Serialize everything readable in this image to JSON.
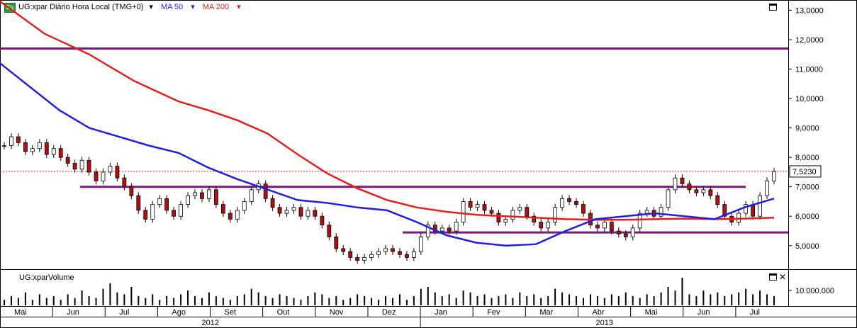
{
  "header": {
    "badge": "Eq",
    "symbol_label": "UG:xpar Diário Hora Local (TMG+0)",
    "ma50_label": "MA 50",
    "ma200_label": "MA 200",
    "caret": "▾"
  },
  "colors": {
    "ma50": "#1f1fe0",
    "ma200": "#e01f1f",
    "resistance": "#7a1a7a",
    "candle_up": "#ffffff",
    "candle_down": "#b01010",
    "price_line": "#e01f1f"
  },
  "volume_panel": {
    "title": "UG:xparVolume",
    "axis_label": "10.000.000"
  },
  "chart_data": {
    "type": "candlestick",
    "price_axis": {
      "ticks": [
        "13,0000",
        "12,0000",
        "11,0000",
        "10,0000",
        "9,0000",
        "8,0000",
        "7,0000",
        "6,0000",
        "5,0000"
      ],
      "ylim": [
        4.2,
        13.3
      ]
    },
    "current_price_label": "7,5230",
    "current_price": 7.523,
    "month_ticks": [
      "Mai",
      "Jun",
      "Jul",
      "Ago",
      "Set",
      "Out",
      "Nov",
      "Dez",
      "Jan",
      "Fev",
      "Mar",
      "Abr",
      "Mai",
      "Jun",
      "Jul"
    ],
    "year_labels": [
      "2012",
      "2013"
    ],
    "horizontal_levels": [
      11.7,
      7.0,
      5.45
    ],
    "ma50": [
      [
        0,
        11.2
      ],
      [
        10,
        10.4
      ],
      [
        20,
        9.6
      ],
      [
        30,
        9.0
      ],
      [
        40,
        8.7
      ],
      [
        50,
        8.4
      ],
      [
        60,
        8.15
      ],
      [
        70,
        7.65
      ],
      [
        80,
        7.25
      ],
      [
        90,
        6.9
      ],
      [
        100,
        6.55
      ],
      [
        110,
        6.45
      ],
      [
        120,
        6.3
      ],
      [
        130,
        6.2
      ],
      [
        140,
        5.8
      ],
      [
        150,
        5.35
      ],
      [
        160,
        5.1
      ],
      [
        170,
        5.0
      ],
      [
        180,
        5.05
      ],
      [
        190,
        5.5
      ],
      [
        200,
        5.9
      ],
      [
        210,
        6.0
      ],
      [
        220,
        6.1
      ],
      [
        230,
        6.0
      ],
      [
        240,
        5.9
      ],
      [
        250,
        6.3
      ],
      [
        260,
        6.6
      ]
    ],
    "ma200": [
      [
        0,
        13.3
      ],
      [
        15,
        12.2
      ],
      [
        30,
        11.5
      ],
      [
        45,
        10.6
      ],
      [
        60,
        9.9
      ],
      [
        70,
        9.6
      ],
      [
        80,
        9.25
      ],
      [
        90,
        8.8
      ],
      [
        100,
        8.1
      ],
      [
        110,
        7.45
      ],
      [
        120,
        6.95
      ],
      [
        130,
        6.55
      ],
      [
        140,
        6.3
      ],
      [
        150,
        6.15
      ],
      [
        160,
        6.05
      ],
      [
        170,
        6.0
      ],
      [
        180,
        5.95
      ],
      [
        190,
        5.9
      ],
      [
        200,
        5.88
      ],
      [
        210,
        5.88
      ],
      [
        220,
        5.9
      ],
      [
        230,
        5.92
      ],
      [
        240,
        5.9
      ],
      [
        250,
        5.92
      ],
      [
        260,
        5.95
      ]
    ],
    "closes": [
      8.4,
      8.7,
      8.5,
      8.2,
      8.3,
      8.5,
      8.1,
      8.3,
      8.0,
      7.8,
      7.6,
      7.9,
      7.5,
      7.2,
      7.5,
      7.7,
      7.3,
      7.0,
      6.7,
      6.2,
      5.9,
      6.4,
      6.6,
      6.2,
      6.0,
      6.4,
      6.7,
      6.8,
      6.6,
      6.9,
      6.4,
      6.1,
      5.9,
      6.2,
      6.5,
      6.9,
      7.1,
      6.6,
      6.3,
      6.1,
      6.2,
      6.3,
      6.0,
      6.2,
      6.0,
      5.7,
      5.3,
      4.9,
      4.8,
      4.6,
      4.5,
      4.6,
      4.7,
      4.8,
      4.9,
      4.8,
      4.7,
      4.6,
      4.8,
      5.3,
      5.7,
      5.5,
      5.6,
      5.5,
      5.8,
      6.5,
      6.3,
      6.4,
      6.2,
      6.1,
      5.8,
      5.9,
      6.2,
      6.3,
      6.0,
      5.8,
      5.6,
      5.8,
      6.3,
      6.6,
      6.5,
      6.4,
      6.1,
      5.7,
      5.6,
      5.8,
      5.5,
      5.4,
      5.3,
      5.6,
      6.1,
      6.2,
      6.0,
      6.3,
      6.9,
      7.3,
      7.1,
      6.9,
      6.8,
      6.9,
      6.7,
      6.4,
      6.0,
      5.8,
      6.1,
      6.4,
      6.0,
      6.7,
      7.2,
      7.52
    ],
    "volumes": [
      0.3,
      0.5,
      0.4,
      0.7,
      0.3,
      0.6,
      0.4,
      0.5,
      0.3,
      0.6,
      0.4,
      0.8,
      0.5,
      0.4,
      0.9,
      1.2,
      0.7,
      0.6,
      1.0,
      0.5,
      0.4,
      0.6,
      0.3,
      0.5,
      0.4,
      0.6,
      0.8,
      0.5,
      0.4,
      0.7,
      0.5,
      0.4,
      0.3,
      0.5,
      0.6,
      0.9,
      0.7,
      0.5,
      0.4,
      0.6,
      0.5,
      0.4,
      0.3,
      0.5,
      0.7,
      0.6,
      0.4,
      0.5,
      0.3,
      0.4,
      0.6,
      0.5,
      0.4,
      0.3,
      0.5,
      0.4,
      0.6,
      0.3,
      0.5,
      0.9,
      1.0,
      0.7,
      0.5,
      0.6,
      0.4,
      0.8,
      0.7,
      0.5,
      0.6,
      0.4,
      0.5,
      0.6,
      0.4,
      0.7,
      0.5,
      0.6,
      0.4,
      0.5,
      0.9,
      0.7,
      0.6,
      0.5,
      0.4,
      0.6,
      0.5,
      0.4,
      0.6,
      0.5,
      0.7,
      0.5,
      0.4,
      0.6,
      0.5,
      0.7,
      1.0,
      0.8,
      1.5,
      0.6,
      0.5,
      0.8,
      0.6,
      0.7,
      0.5,
      0.6,
      0.7,
      0.9,
      0.6,
      0.8,
      0.6,
      0.5
    ]
  }
}
